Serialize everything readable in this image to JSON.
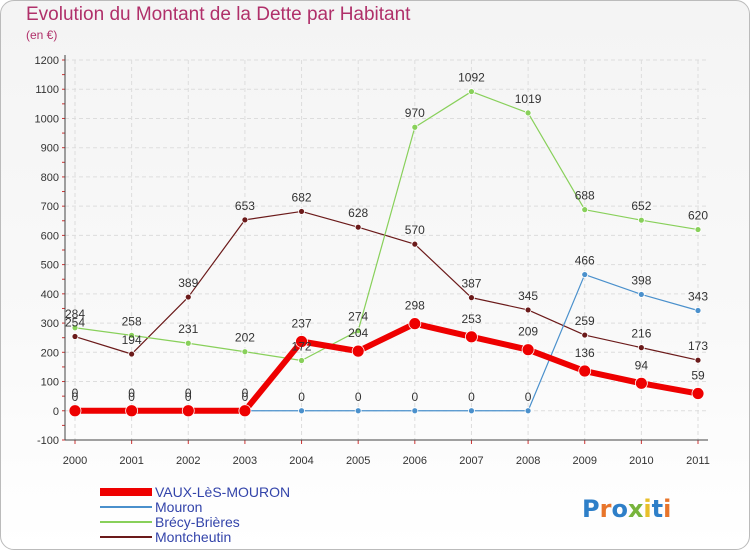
{
  "title": "Evolution du Montant de la Dette par Habitant",
  "subtitle": "(en €)",
  "brand": "Proxiti",
  "chart_data": {
    "type": "line",
    "x": [
      "2000",
      "2001",
      "2002",
      "2003",
      "2004",
      "2005",
      "2006",
      "2007",
      "2008",
      "2009",
      "2010",
      "2011"
    ],
    "ylim": [
      -100,
      1200
    ],
    "yticks": [
      -100,
      0,
      100,
      200,
      300,
      400,
      500,
      600,
      700,
      800,
      900,
      1000,
      1100,
      1200
    ],
    "grid": true,
    "legend_position": "bottom-left",
    "series": [
      {
        "name": "Montcheutin",
        "color": "#6b1a1a",
        "values": [
          254,
          194,
          389,
          653,
          682,
          628,
          570,
          387,
          345,
          259,
          216,
          173
        ]
      },
      {
        "name": "Brécy-Brières",
        "color": "#88d05a",
        "values": [
          284,
          258,
          231,
          202,
          172,
          274,
          970,
          1092,
          1019,
          688,
          652,
          620
        ]
      },
      {
        "name": "Mouron",
        "color": "#4a90cc",
        "values": [
          0,
          0,
          0,
          0,
          0,
          0,
          0,
          0,
          0,
          466,
          398,
          343
        ]
      },
      {
        "name": "VAUX-LèS-MOURON",
        "color": "#ee0000",
        "values": [
          0,
          0,
          0,
          0,
          237,
          204,
          298,
          253,
          209,
          136,
          94,
          59
        ]
      }
    ],
    "legend_order": [
      "VAUX-LèS-MOURON",
      "Mouron",
      "Brécy-Brières",
      "Montcheutin"
    ]
  }
}
